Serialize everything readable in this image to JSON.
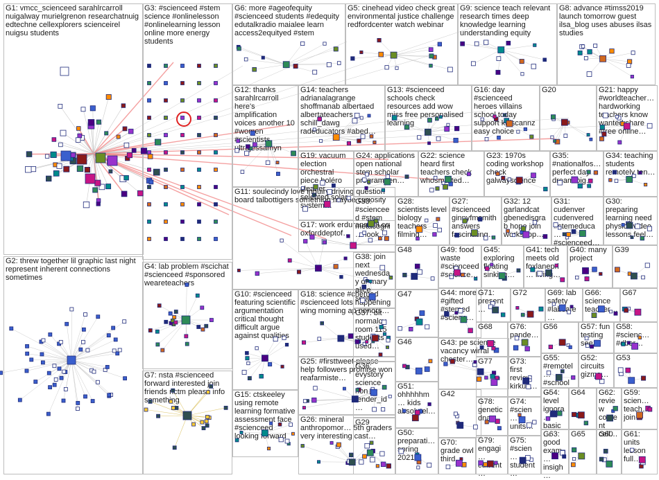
{
  "groups": [
    {
      "id": "G1",
      "label": "G1: vmcc_scienceed sarahlrcarroll nuigalway murielgrenon researchatnuig edtechne cellexplorers scienceirel nuigsu students"
    },
    {
      "id": "G2",
      "label": "G2: threw together lil graphic last night represent inherent connections sometimes"
    },
    {
      "id": "G3",
      "label": "G3: #scienceed #stem science #onlinelesson #onlinelearning lesson online more energy students"
    },
    {
      "id": "G4",
      "label": "G4: lab problem #scichat #scienceed #sponsored weareteachers"
    },
    {
      "id": "G5",
      "label": "G5: cinehead video check great environmental justice challenge redfordcenter watch webinar"
    },
    {
      "id": "G6",
      "label": "G6: more #ageofequity #scienceed students #edequity edutalkradio maialee learn access2equityed #stem"
    },
    {
      "id": "G7",
      "label": "G7: nsta #scienceed forward interested join friends nctm please info something"
    },
    {
      "id": "G8",
      "label": "G8: advance #timss2019 launch tomorrow guest ilsa_blog uses abuses ilsas studies"
    },
    {
      "id": "G9",
      "label": "G9: science teach relevant research times deep knowledge learning understanding equity"
    },
    {
      "id": "G10",
      "label": "G10: #scienceed featuring scientific argumentation critical thought difficult argue against qualities"
    },
    {
      "id": "G11",
      "label": "G11: soulecindy love inquiry driving question board talbottigers something maybe curiosity"
    },
    {
      "id": "G12",
      "label": "G12: thanks sarahlrcarroll here's amplification voices another 10 #women #scientists ultrajessamyn"
    },
    {
      "id": "G13",
      "label": "G13: #scienceed schools check resources add wow miss free personalised learning"
    },
    {
      "id": "G14",
      "label": "G14: teachers adrianalagrange shoffmanab albertaed albertateachers schill_dawg radeducators #abed…"
    },
    {
      "id": "G15",
      "label": "G15: ctskeeley using remote learning formative assessment face #scienceed looking forward"
    },
    {
      "id": "G16",
      "label": "G16: day #scienceed heroes villains school today support kidscannz easy choice"
    },
    {
      "id": "G17",
      "label": "G17: work erduransibel co oxforddeptof…"
    },
    {
      "id": "G18",
      "label": "G18: science #chemed #scienceed lots happening wing morning ap honors…"
    },
    {
      "id": "G19",
      "label": "G19: vacuum election orchestral piece boléro cleaner selected solar system…"
    },
    {
      "id": "G20",
      "label": "G20"
    },
    {
      "id": "G21",
      "label": "G21: happy #worldteacher… hardworking teachers know wanted share #free online…"
    },
    {
      "id": "G22",
      "label": "G22: science heard first teachers check whosmarted…"
    },
    {
      "id": "G23",
      "label": "G23: 1970s coding workshop check galwayscience"
    },
    {
      "id": "G24",
      "label": "G24: applications open national stem scholar program ten…"
    },
    {
      "id": "G25",
      "label": "G25: #firsttweet please help followers promise won reafarmiste…"
    },
    {
      "id": "G26",
      "label": "G26: mineral anthropomor… 5th graders very interesting cast…"
    },
    {
      "id": "G27",
      "label": "G27: #scienceed ginnyfmsmith answers fascinating…"
    },
    {
      "id": "G28",
      "label": "G28: scientists level biology teachers filming…"
    },
    {
      "id": "G29",
      "label": "G29"
    },
    {
      "id": "G30",
      "label": "G30: preparing learning need physics video lessons feel…"
    },
    {
      "id": "G31",
      "label": "G31: cudenver cudenvered #stemeduca… #scienceed…"
    },
    {
      "id": "G32",
      "label": "G32: 12 garlandcat gbenedisgrab hope join workshop…"
    },
    {
      "id": "G33",
      "label": "G33: #scienceed #stem metacogni… look…"
    },
    {
      "id": "G34",
      "label": "G34: teaching students remotely ten…"
    },
    {
      "id": "G35",
      "label": "G35: #nationalfos… perfect day dream big…"
    },
    {
      "id": "G36",
      "label": "G36: evystory science non tender_id…"
    },
    {
      "id": "G37",
      "label": "G37: bit normalcy room 115 students used…"
    },
    {
      "id": "G38",
      "label": "G38: join next wednesday dr mary alice scott…"
    },
    {
      "id": "G39",
      "label": "G39"
    },
    {
      "id": "G40",
      "label": "G40: many project"
    },
    {
      "id": "G41",
      "label": "G41: tech meets old foxlanepri… living…"
    },
    {
      "id": "G42",
      "label": "G42"
    },
    {
      "id": "G43",
      "label": "G43: pe science vacancy wirral chester…"
    },
    {
      "id": "G44",
      "label": "G44: more #gifted #stemed #scienc…"
    },
    {
      "id": "G45",
      "label": "G45: exploring floating sinking…"
    },
    {
      "id": "G46",
      "label": "G46"
    },
    {
      "id": "G47",
      "label": "G47"
    },
    {
      "id": "G48",
      "label": "G48"
    },
    {
      "id": "G49",
      "label": "G49: food waste #scienceed #science…"
    },
    {
      "id": "G50",
      "label": "G50: preparati… spring 2021…"
    },
    {
      "id": "G51",
      "label": "G51: ohhhhhm… kids absolutel…"
    },
    {
      "id": "G52",
      "label": "G52: circuits gizmo…"
    },
    {
      "id": "G53",
      "label": "G53"
    },
    {
      "id": "G54",
      "label": "G54: level ignora… basic…"
    },
    {
      "id": "G55",
      "label": "G55: #remotel… #school…"
    },
    {
      "id": "G56",
      "label": "G56"
    },
    {
      "id": "G57",
      "label": "G57: fun testing see…"
    },
    {
      "id": "G58",
      "label": "G58: #scienc… #dber…"
    },
    {
      "id": "G59",
      "label": "G59: scien… teach… join…"
    },
    {
      "id": "G60",
      "label": "G60"
    },
    {
      "id": "G61",
      "label": "G61: units lesson full…"
    },
    {
      "id": "G62",
      "label": "G62: review content cell…"
    },
    {
      "id": "G63",
      "label": "G63: good exam… insigh…"
    },
    {
      "id": "G64",
      "label": "G64"
    },
    {
      "id": "G65",
      "label": "G65"
    },
    {
      "id": "G66",
      "label": "G66: science teacher…"
    },
    {
      "id": "G67",
      "label": "G67"
    },
    {
      "id": "G68",
      "label": "G68"
    },
    {
      "id": "G69",
      "label": "G69: lab safety #labsafe…"
    },
    {
      "id": "G70",
      "label": "G70: grade owl third…"
    },
    {
      "id": "G71",
      "label": "G71: present…"
    },
    {
      "id": "G72",
      "label": "G72"
    },
    {
      "id": "G73",
      "label": "G73: first review kirkus…"
    },
    {
      "id": "G74",
      "label": "G74: #scien… units…"
    },
    {
      "id": "G75",
      "label": "G75: #scien… student…"
    },
    {
      "id": "G76",
      "label": "G76: pande…"
    },
    {
      "id": "G77",
      "label": "G77"
    },
    {
      "id": "G78",
      "label": "G78: genetic dna…"
    },
    {
      "id": "G79",
      "label": "G79: engagi… current…"
    }
  ],
  "colors": {
    "box_border": "#bdbdbd",
    "edge": "#b9b9b9",
    "edge_highlight": "#f08080",
    "node_outline": "#1f2a7a",
    "node_palette": [
      "#1f2a7a",
      "#2e8b57",
      "#3a5fcd",
      "#8b1a1a",
      "#6b8e23",
      "#9932cc",
      "#c71585",
      "#2f4f4f",
      "#d2691e",
      "#008b8b",
      "#ff8c00",
      "#4b0082"
    ]
  }
}
